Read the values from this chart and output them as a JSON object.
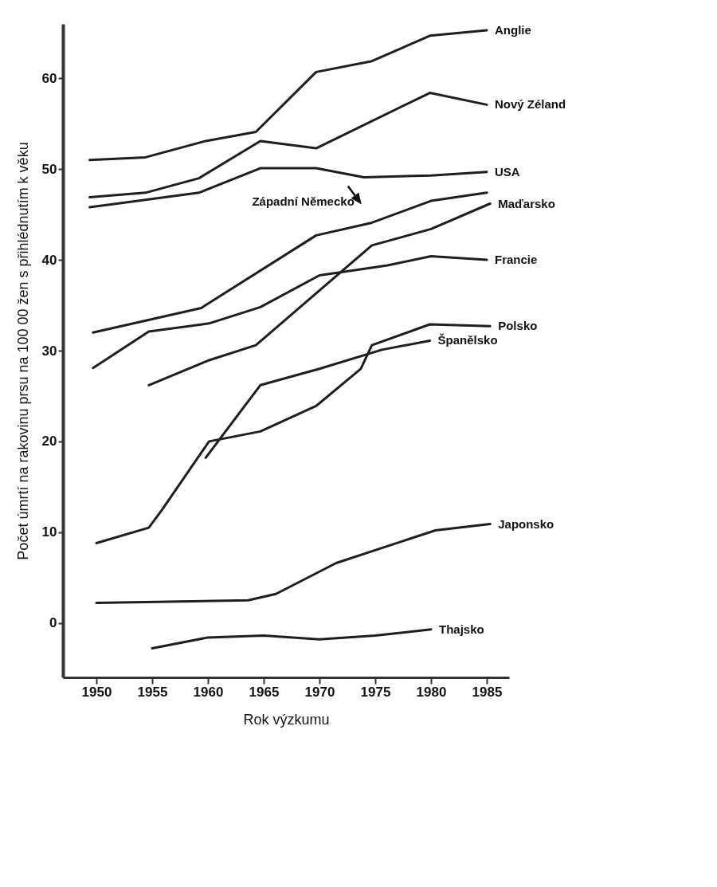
{
  "chart_data": {
    "type": "line",
    "xlabel": "Rok výzkumu",
    "ylabel": "Počet úmrtí na rakovinu prsu na 100 00 žen s přihlédnutím k věku",
    "xlim": [
      1947,
      1987
    ],
    "xticks": [
      1950,
      1955,
      1960,
      1965,
      1970,
      1975,
      1980,
      1985
    ],
    "ylim": [
      -6,
      66
    ],
    "yticks": [
      0,
      10,
      20,
      30,
      40,
      50,
      60
    ],
    "grid": false,
    "legend": false,
    "marker": "none",
    "line_style": "solid",
    "series": [
      {
        "name": "Anglie",
        "color": "#1e1e1e",
        "x": [
          1949.4,
          1954.4,
          1959.8,
          1964.3,
          1969.7,
          1974.7,
          1979.9,
          1985
        ],
        "values": [
          51.0,
          51.3,
          53.1,
          54.1,
          60.7,
          61.9,
          64.7,
          65.3
        ]
      },
      {
        "name": "Nový Zéland",
        "color": "#1e1e1e",
        "x": [
          1949.4,
          1954.4,
          1959.2,
          1964.7,
          1969.7,
          1979.9,
          1985
        ],
        "values": [
          46.9,
          47.4,
          49.0,
          53.1,
          52.3,
          58.4,
          57.1
        ]
      },
      {
        "name": "USA",
        "color": "#1e1e1e",
        "x": [
          1949.4,
          1959.2,
          1964.7,
          1969.7,
          1974.0,
          1980.0,
          1985
        ],
        "values": [
          45.8,
          47.4,
          50.1,
          50.1,
          49.1,
          49.3,
          49.7
        ]
      },
      {
        "color": "#1e1e1e",
        "x": [
          1949.7,
          1959.4,
          1969.7,
          1974.7,
          1980.0,
          1985
        ],
        "values": [
          32.0,
          34.7,
          42.7,
          44.1,
          46.5,
          47.4
        ]
      },
      {
        "name": "Maďarsko",
        "color": "#1e1e1e",
        "x": [
          1954.7,
          1960,
          1964.3,
          1974.7,
          1980,
          1985.3
        ],
        "values": [
          26.2,
          28.9,
          30.6,
          41.6,
          43.4,
          46.2
        ]
      },
      {
        "name": "Francie",
        "color": "#1e1e1e",
        "x": [
          1949.7,
          1954.7,
          1960.1,
          1964.7,
          1970,
          1976.1,
          1980,
          1985
        ],
        "values": [
          28.1,
          32.1,
          33.0,
          34.8,
          38.3,
          39.4,
          40.4,
          40.0
        ]
      },
      {
        "name": "Polsko",
        "color": "#1e1e1e",
        "x": [
          1950,
          1954.7,
          1955.9,
          1960.1,
          1964.7,
          1969.7,
          1973.7,
          1974.7,
          1979.9,
          1985.3
        ],
        "values": [
          8.8,
          10.5,
          12.5,
          20.0,
          21.1,
          23.9,
          28.0,
          30.6,
          32.9,
          32.7
        ]
      },
      {
        "name": "Španělsko",
        "color": "#1e1e1e",
        "x": [
          1959.8,
          1964.7,
          1970,
          1975.6,
          1979.9
        ],
        "values": [
          18.2,
          26.2,
          28.0,
          30.1,
          31.1
        ]
      },
      {
        "name": "Japonsko",
        "color": "#1e1e1e",
        "x": [
          1950,
          1963.6,
          1966.1,
          1971.5,
          1980.4,
          1985.3
        ],
        "values": [
          2.2,
          2.5,
          3.2,
          6.6,
          10.2,
          10.9
        ]
      },
      {
        "name": "Thajsko",
        "color": "#1e1e1e",
        "x": [
          1955,
          1960,
          1965,
          1970,
          1975,
          1980
        ],
        "values": [
          -2.8,
          -1.6,
          -1.4,
          -1.8,
          -1.4,
          -0.7
        ]
      }
    ],
    "annotations": [
      {
        "text": "Západní Německo",
        "x": 1974.7,
        "y": 44.1
      }
    ]
  }
}
